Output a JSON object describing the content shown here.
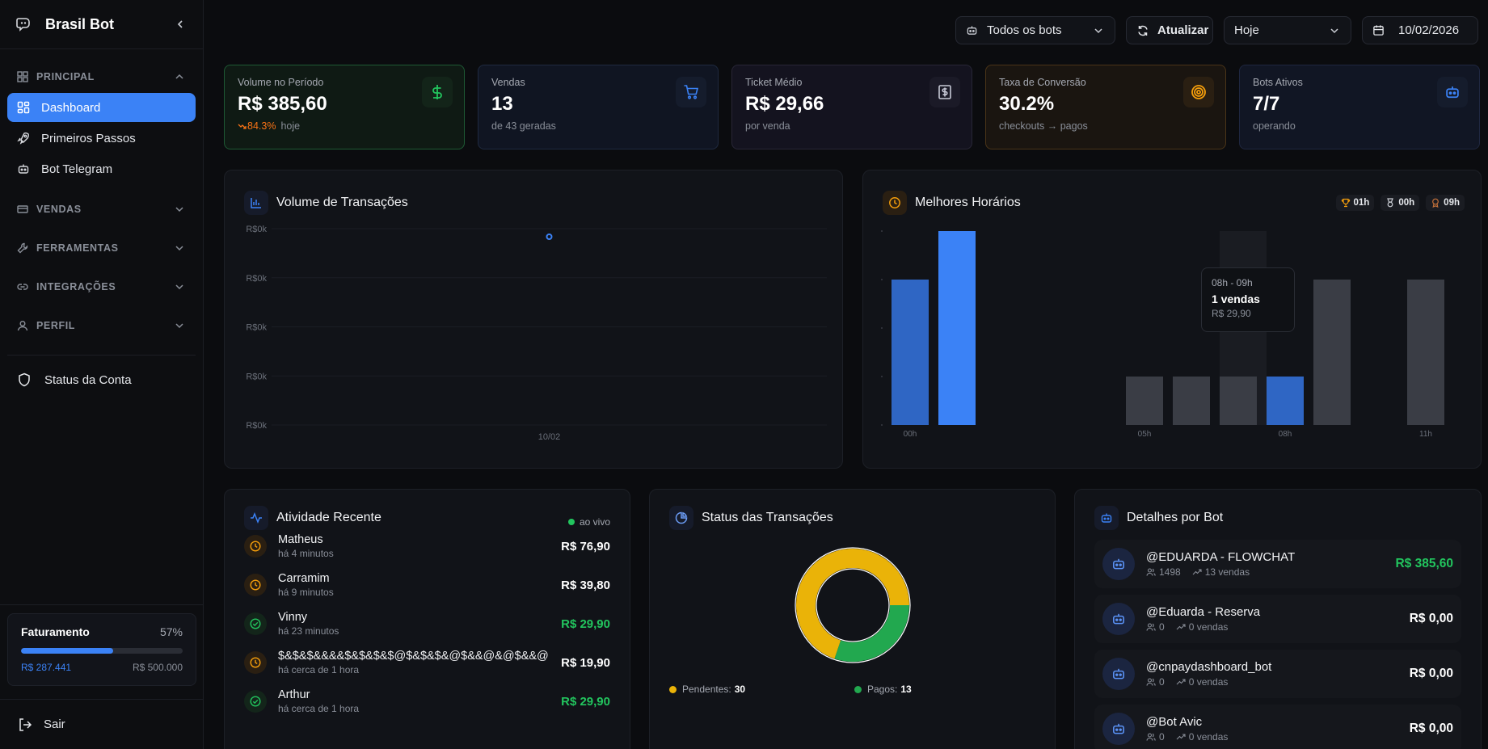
{
  "sidebar": {
    "brand": "Brasil Bot",
    "sections": {
      "principal": "PRINCIPAL",
      "vendas": "VENDAS",
      "ferramentas": "FERRAMENTAS",
      "integracoes": "INTEGRAÇÕES",
      "perfil": "PERFIL"
    },
    "items": [
      {
        "label": "Dashboard",
        "icon": "grid-icon"
      },
      {
        "label": "Primeiros Passos",
        "icon": "rocket-icon"
      },
      {
        "label": "Bot Telegram",
        "icon": "bot-icon"
      }
    ],
    "status_conta": "Status da Conta",
    "faturamento": {
      "title": "Faturamento",
      "percent_label": "57%",
      "progress": 0.57,
      "current": "R$ 287.441",
      "max": "R$ 500.000"
    },
    "logout": "Sair"
  },
  "topbar": {
    "bots_select": "Todos os bots",
    "refresh": "Atualizar",
    "period_select": "Hoje",
    "date": "10/02/2026"
  },
  "stats": [
    {
      "label": "Volume no Período",
      "value": "R$ 385,60",
      "trend": "84.3%",
      "sub": "hoje",
      "icon": "dollar-icon"
    },
    {
      "label": "Vendas",
      "value": "13",
      "sub": "de 43 geradas",
      "icon": "cart-icon"
    },
    {
      "label": "Ticket Médio",
      "value": "R$ 29,66",
      "sub": "por venda",
      "icon": "receipt-icon"
    },
    {
      "label": "Taxa de Conversão",
      "value": "30.2%",
      "sub": "checkouts → pagos",
      "icon": "target-icon"
    },
    {
      "label": "Bots Ativos",
      "value": "7/7",
      "sub": "operando",
      "icon": "bot-icon"
    }
  ],
  "volume_chart": {
    "title": "Volume de Transações",
    "chart_data": {
      "type": "line",
      "title": "Volume de Transações",
      "y_ticks": [
        "R$0k",
        "R$0k",
        "R$0k",
        "R$0k",
        "R$0k"
      ],
      "x_ticks": [
        "10/02"
      ],
      "points": [
        {
          "x": "10/02",
          "y": 0.3856
        }
      ]
    }
  },
  "hours_chart": {
    "title": "Melhores Horários",
    "pills": [
      {
        "icon": "trophy-icon",
        "label": "01h"
      },
      {
        "icon": "medal-icon",
        "label": "00h"
      },
      {
        "icon": "award-icon",
        "label": "09h"
      }
    ],
    "tooltip": {
      "range": "08h - 09h",
      "count": "1 vendas",
      "value": "R$ 29,90"
    },
    "chart_data": {
      "type": "bar",
      "title": "Melhores Horários",
      "x_ticks": [
        "00h",
        "05h",
        "08h",
        "11h"
      ],
      "categories": [
        "00h",
        "01h",
        "02h",
        "03h",
        "04h",
        "05h",
        "06h",
        "07h",
        "08h",
        "09h",
        "10h",
        "11h"
      ],
      "values": [
        3,
        4,
        0,
        0,
        0,
        1,
        1,
        1,
        1,
        3,
        0,
        3
      ],
      "ylim": [
        0,
        4
      ]
    }
  },
  "activity": {
    "title": "Atividade Recente",
    "live": "ao vivo",
    "items": [
      {
        "name": "Matheus",
        "time": "há 4 minutos",
        "amount": "R$ 76,90",
        "status": "pending"
      },
      {
        "name": "Carramim",
        "time": "há 9 minutos",
        "amount": "R$ 39,80",
        "status": "pending"
      },
      {
        "name": "Vinny",
        "time": "há 23 minutos",
        "amount": "R$ 29,90",
        "status": "paid"
      },
      {
        "name": "$&$&$&&&&$&$&$&$@$&$&$&@$&&@&@$&&@",
        "time": "há cerca de 1 hora",
        "amount": "R$ 19,90",
        "status": "pending"
      },
      {
        "name": "Arthur",
        "time": "há cerca de 1 hora",
        "amount": "R$ 29,90",
        "status": "paid"
      }
    ]
  },
  "status": {
    "title": "Status das Transações",
    "legend": [
      {
        "label": "Pendentes:",
        "value": "30"
      },
      {
        "label": "Pagos:",
        "value": "13"
      }
    ],
    "chart_data": {
      "type": "pie",
      "title": "Status das Transações",
      "labels": [
        "Pendentes",
        "Pagos"
      ],
      "values": [
        30,
        13
      ]
    }
  },
  "bots": {
    "title": "Detalhes por Bot",
    "items": [
      {
        "name": "@EDUARDA - FLOWCHAT",
        "users": "1498",
        "sales": "13 vendas",
        "amount": "R$ 385,60",
        "positive": true
      },
      {
        "name": "@Eduarda - Reserva",
        "users": "0",
        "sales": "0 vendas",
        "amount": "R$ 0,00",
        "positive": false
      },
      {
        "name": "@cnpaydashboard_bot",
        "users": "0",
        "sales": "0 vendas",
        "amount": "R$ 0,00",
        "positive": false
      },
      {
        "name": "@Bot Avic",
        "users": "0",
        "sales": "0 vendas",
        "amount": "R$ 0,00",
        "positive": false
      }
    ]
  },
  "colors": {
    "accent": "#3b82f6",
    "green": "#22c55e",
    "orange": "#f59e0b",
    "pending": "#eab308",
    "paid": "#22a84f"
  }
}
